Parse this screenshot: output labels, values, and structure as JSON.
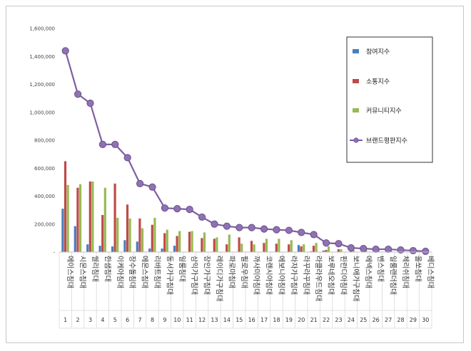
{
  "chart_data": {
    "type": "bar",
    "categories": [
      "에이스침대",
      "시몬스침대",
      "씰리침대",
      "한샘침대",
      "이케아침대",
      "장수돌침대",
      "에몬스침대",
      "리바트침대",
      "동서가구침대",
      "일룸침대",
      "삼익가구침대",
      "장인가구침대",
      "레이디가구침대",
      "파로마침대",
      "필로우침대",
      "까사미아침대",
      "코렌시아침대",
      "에보니아침대",
      "라자가구침대",
      "라꾸라꾸침대",
      "라클라우드침대",
      "보루네오침대",
      "핀란디아침대",
      "보니애가구침대",
      "에넥스침대",
      "벤스침대",
      "일룸랜더침대",
      "체리쉬침대",
      "올쏘침대",
      "베디스침대"
    ],
    "x_numbers": [
      "1",
      "2",
      "3",
      "4",
      "5",
      "6",
      "7",
      "8",
      "9",
      "10",
      "11",
      "12",
      "13",
      "14",
      "15",
      "16",
      "17",
      "18",
      "19",
      "20",
      "21",
      "22",
      "23",
      "24",
      "25",
      "26",
      "27",
      "28",
      "29",
      "30"
    ],
    "ylim": [
      0,
      1600000
    ],
    "yticks": [
      0,
      200000,
      400000,
      600000,
      800000,
      1000000,
      1200000,
      1400000,
      1600000
    ],
    "ytick_labels": [
      "-",
      "200,000",
      "400,000",
      "600,000",
      "800,000",
      "1,000,000",
      "1,200,000",
      "1,400,000",
      "1,600,000"
    ],
    "gridlines": false,
    "legend_position": "right",
    "series": [
      {
        "name": "참여지수",
        "kind": "bar",
        "color": "#4a7ebb",
        "values": [
          310000,
          185000,
          55000,
          45000,
          40000,
          85000,
          75000,
          25000,
          25000,
          45000,
          0,
          0,
          0,
          0,
          0,
          0,
          0,
          0,
          0,
          50000,
          5000,
          10000,
          0,
          0,
          0,
          0,
          0,
          0,
          0,
          0
        ]
      },
      {
        "name": "소통지수",
        "kind": "bar",
        "color": "#be4b48",
        "values": [
          650000,
          460000,
          505000,
          265000,
          490000,
          340000,
          240000,
          195000,
          135000,
          115000,
          145000,
          100000,
          95000,
          55000,
          105000,
          80000,
          65000,
          60000,
          55000,
          40000,
          45000,
          15000,
          20000,
          10000,
          5000,
          5000,
          5000,
          5000,
          5000,
          5000
        ]
      },
      {
        "name": "커뮤니티지수",
        "kind": "bar",
        "color": "#98b954",
        "values": [
          480000,
          485000,
          505000,
          460000,
          245000,
          240000,
          170000,
          245000,
          160000,
          150000,
          150000,
          140000,
          105000,
          125000,
          60000,
          55000,
          95000,
          95000,
          85000,
          55000,
          65000,
          40000,
          20000,
          15000,
          15000,
          10000,
          10000,
          10000,
          5000,
          5000
        ]
      },
      {
        "name": "브랜드평판지수",
        "kind": "line",
        "color": "#7d5fa0",
        "values": [
          1440000,
          1130000,
          1065000,
          770000,
          770000,
          675000,
          490000,
          465000,
          315000,
          310000,
          305000,
          250000,
          200000,
          185000,
          175000,
          175000,
          165000,
          160000,
          155000,
          140000,
          125000,
          65000,
          60000,
          30000,
          25000,
          20000,
          20000,
          15000,
          10000,
          5000
        ]
      }
    ]
  }
}
